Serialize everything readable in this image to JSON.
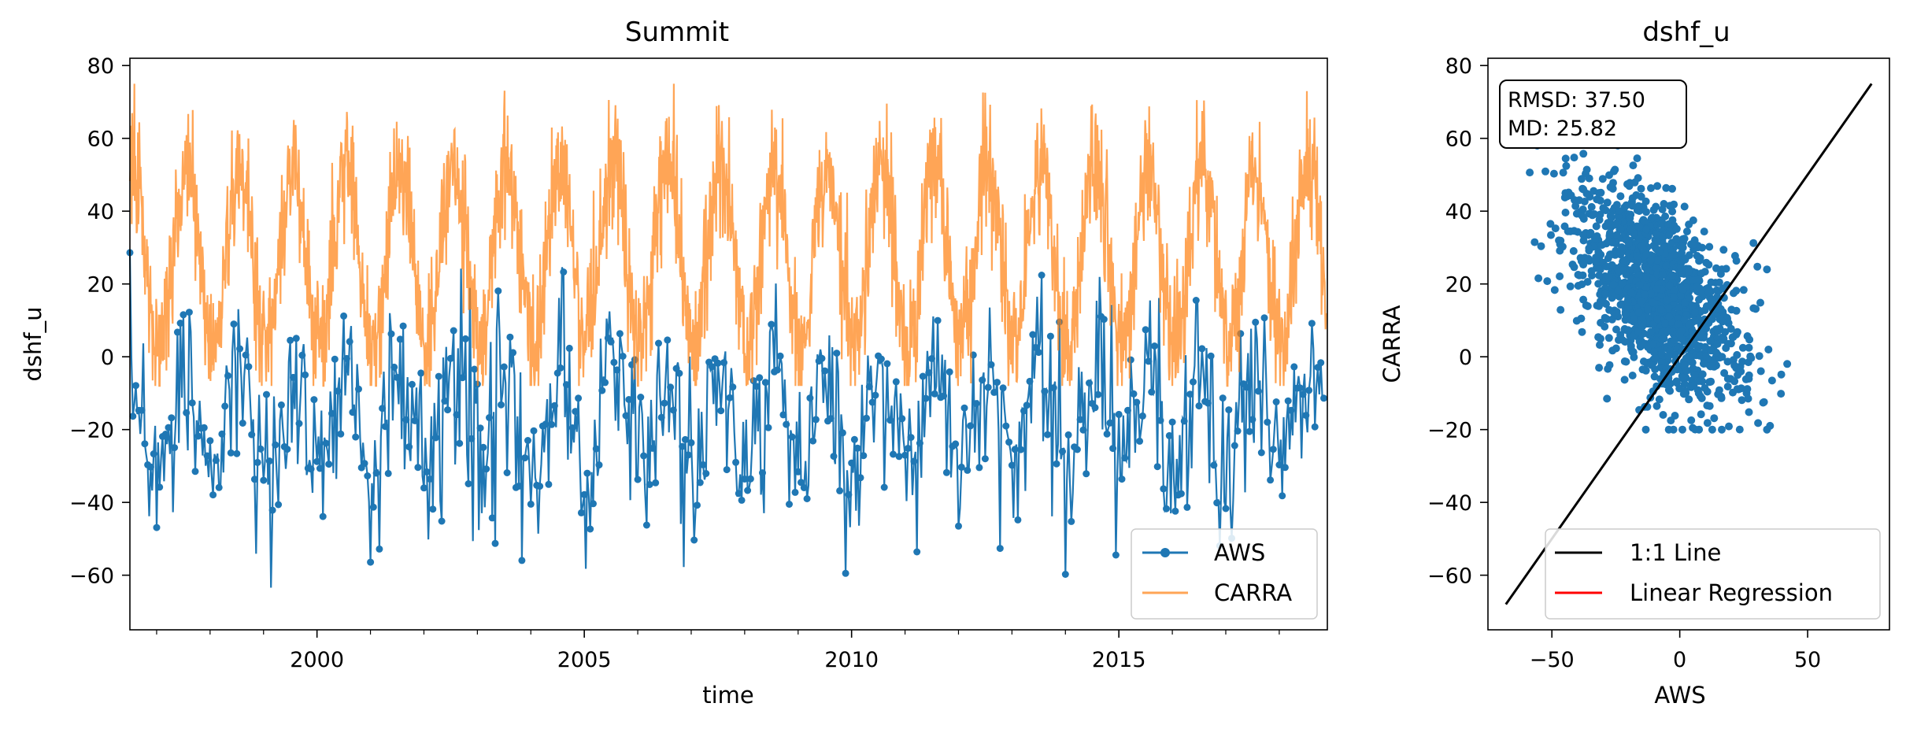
{
  "chart_data": [
    {
      "type": "line",
      "title": "Summit",
      "xlabel": "time",
      "ylabel": "dshf_u",
      "xlim": [
        1996.5,
        2018.9
      ],
      "ylim": [
        -75,
        82
      ],
      "x_ticks": [
        2000,
        2005,
        2010,
        2015
      ],
      "x_tick_labels": [
        "2000",
        "2005",
        "2010",
        "2015"
      ],
      "y_ticks": [
        -60,
        -40,
        -20,
        0,
        20,
        40,
        60,
        80
      ],
      "y_tick_labels": [
        "−60",
        "−40",
        "−20",
        "0",
        "20",
        "40",
        "60",
        "80"
      ],
      "grid": false,
      "legend": {
        "placement": "lower-right",
        "entries": [
          "AWS",
          "CARRA"
        ]
      },
      "series": [
        {
          "name": "AWS",
          "color": "#1f77b4",
          "marker": "circle",
          "description_values": "daily values mostly between -60 and 30, seasonal cycle with positive summer peaks around 20-40 and winter lows down to about -60",
          "approx_annual_max": 30,
          "approx_annual_min": -55
        },
        {
          "name": "CARRA",
          "color": "#ff7f0e",
          "alpha": 0.7,
          "approx_annual_max": 65,
          "approx_annual_min": -5
        }
      ]
    },
    {
      "type": "scatter",
      "title": "dshf_u",
      "xlabel": "AWS",
      "ylabel": "CARRA",
      "xlim": [
        -75,
        82
      ],
      "ylim": [
        -75,
        82
      ],
      "x_ticks": [
        -50,
        0,
        50
      ],
      "x_tick_labels": [
        "−50",
        "0",
        "50"
      ],
      "y_ticks": [
        -60,
        -40,
        -20,
        0,
        20,
        40,
        60,
        80
      ],
      "y_tick_labels": [
        "−60",
        "−40",
        "−20",
        "0",
        "20",
        "40",
        "60",
        "80"
      ],
      "annotation": [
        "RMSD: 37.50",
        "MD: 25.82"
      ],
      "legend": {
        "placement": "lower-right",
        "entries": [
          "1:1 Line",
          "Linear Regression"
        ]
      },
      "one_to_one_line": {
        "x": [
          -68,
          75
        ],
        "y": [
          -68,
          75
        ],
        "color": "#000000"
      },
      "regression_color": "#ff0000",
      "point_color": "#1f77b4",
      "cloud_center": [
        -10,
        18
      ]
    }
  ]
}
